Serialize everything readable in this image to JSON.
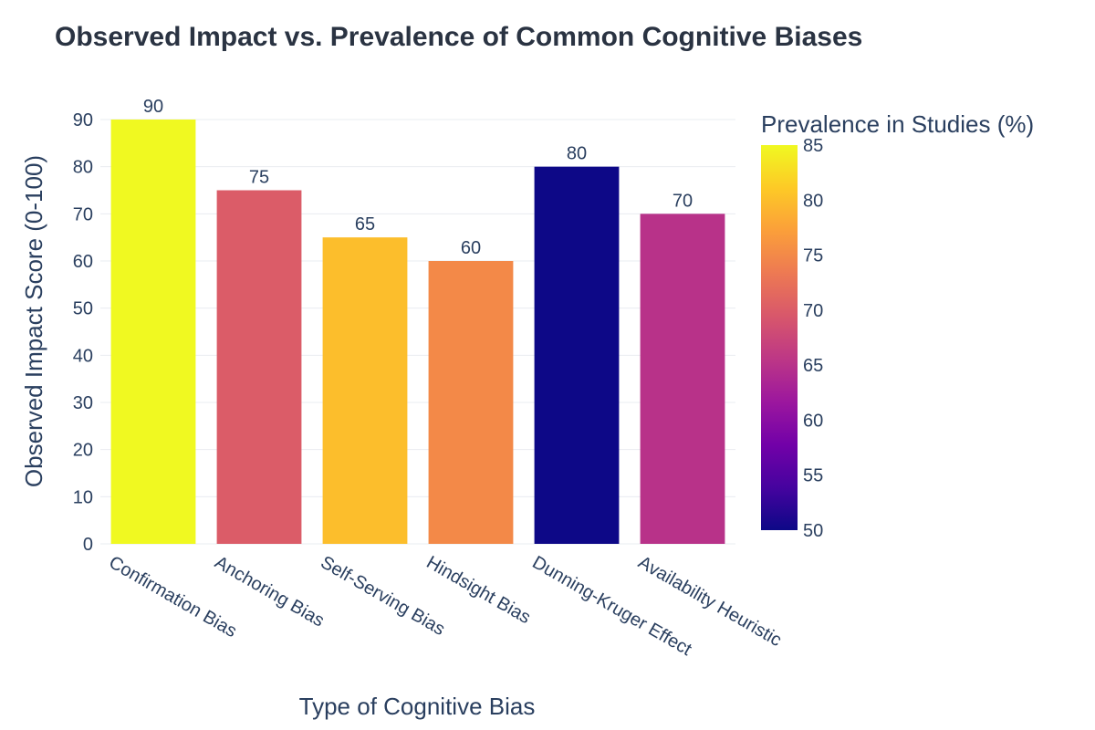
{
  "chart_data": {
    "type": "bar",
    "title": "Observed Impact vs. Prevalence of Common Cognitive Biases",
    "xlabel": "Type of Cognitive Bias",
    "ylabel": "Observed Impact Score (0-100)",
    "categories": [
      "Confirmation Bias",
      "Anchoring Bias",
      "Self-Serving Bias",
      "Hindsight Bias",
      "Dunning-Kruger Effect",
      "Availability Heuristic"
    ],
    "values": [
      90,
      75,
      65,
      60,
      80,
      70
    ],
    "color_values": [
      85,
      70,
      80,
      75,
      50,
      65
    ],
    "ylim": [
      0,
      90
    ],
    "yticks": [
      0,
      10,
      20,
      30,
      40,
      50,
      60,
      70,
      80,
      90
    ],
    "grid": true,
    "colorbar": {
      "title": "Prevalence in Studies (%)",
      "range": [
        50,
        85
      ],
      "ticks": [
        50,
        55,
        60,
        65,
        70,
        75,
        80,
        85
      ],
      "colorscale": "plasma",
      "placement": "right"
    }
  }
}
